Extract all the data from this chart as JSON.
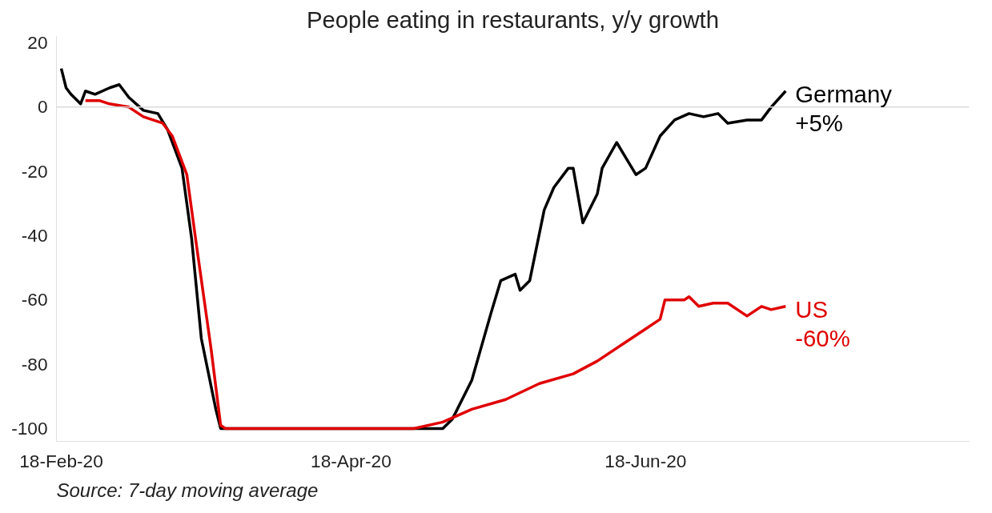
{
  "chart_data": {
    "type": "line",
    "title": "People eating in restaurants, y/y growth",
    "xlim": [
      "2020-02-17",
      "2020-08-24"
    ],
    "ylim": [
      -104,
      22
    ],
    "xticks": [
      {
        "value": "2020-02-18",
        "label": "18-Feb-20"
      },
      {
        "value": "2020-04-18",
        "label": "18-Apr-20"
      },
      {
        "value": "2020-06-18",
        "label": "18-Jun-20"
      }
    ],
    "yticks": [
      20,
      0,
      -20,
      -40,
      -60,
      -80,
      -100
    ],
    "grid": false,
    "marker": "none",
    "line_style": "solid",
    "ref_lines": [
      {
        "axis": "y",
        "value": 0,
        "color": "#d9d9d9"
      }
    ],
    "series": [
      {
        "name": "Germany",
        "color": "#000000",
        "x": [
          "2020-02-18",
          "2020-02-19",
          "2020-02-20",
          "2020-02-22",
          "2020-02-23",
          "2020-02-25",
          "2020-02-28",
          "2020-03-01",
          "2020-03-03",
          "2020-03-06",
          "2020-03-09",
          "2020-03-11",
          "2020-03-14",
          "2020-03-16",
          "2020-03-18",
          "2020-03-21",
          "2020-03-22",
          "2020-05-07",
          "2020-05-09",
          "2020-05-13",
          "2020-05-17",
          "2020-05-19",
          "2020-05-22",
          "2020-05-23",
          "2020-05-25",
          "2020-05-28",
          "2020-05-30",
          "2020-06-02",
          "2020-06-03",
          "2020-06-05",
          "2020-06-08",
          "2020-06-09",
          "2020-06-12",
          "2020-06-14",
          "2020-06-16",
          "2020-06-18",
          "2020-06-21",
          "2020-06-24",
          "2020-06-27",
          "2020-06-30",
          "2020-07-03",
          "2020-07-05",
          "2020-07-09",
          "2020-07-12",
          "2020-07-14",
          "2020-07-17"
        ],
        "values": [
          12,
          6,
          4,
          1,
          5,
          4,
          6,
          7,
          3,
          -1,
          -2,
          -7,
          -19,
          -41,
          -72,
          -94,
          -100,
          -100,
          -97,
          -85,
          -64,
          -54,
          -52,
          -57,
          -54,
          -32,
          -25,
          -19,
          -19,
          -36,
          -27,
          -19,
          -11,
          -16,
          -21,
          -19,
          -9,
          -4,
          -2,
          -3,
          -2,
          -5,
          -4,
          -4,
          0,
          5
        ]
      },
      {
        "name": "US",
        "color": "#e00000",
        "x": [
          "2020-02-23",
          "2020-02-26",
          "2020-02-28",
          "2020-03-03",
          "2020-03-06",
          "2020-03-10",
          "2020-03-12",
          "2020-03-15",
          "2020-03-17",
          "2020-03-20",
          "2020-03-22",
          "2020-03-23",
          "2020-05-01",
          "2020-05-07",
          "2020-05-13",
          "2020-05-20",
          "2020-05-27",
          "2020-06-03",
          "2020-06-08",
          "2020-06-13",
          "2020-06-18",
          "2020-06-21",
          "2020-06-22",
          "2020-06-26",
          "2020-06-27",
          "2020-06-29",
          "2020-07-02",
          "2020-07-05",
          "2020-07-09",
          "2020-07-12",
          "2020-07-14",
          "2020-07-17"
        ],
        "values": [
          2,
          2,
          1,
          0,
          -3,
          -5,
          -9,
          -21,
          -43,
          -75,
          -99,
          -100,
          -100,
          -98,
          -94,
          -91,
          -86,
          -83,
          -79,
          -74,
          -69,
          -66,
          -60,
          -60,
          -59,
          -62,
          -61,
          -61,
          -65,
          -62,
          -63,
          -62
        ]
      }
    ],
    "annotations": [
      {
        "text": "+5%",
        "x": "2020-07-17",
        "y": 5
      },
      {
        "text": "-60%",
        "x": "2020-07-17",
        "y": -62
      },
      "Source: 7-day moving average"
    ]
  }
}
